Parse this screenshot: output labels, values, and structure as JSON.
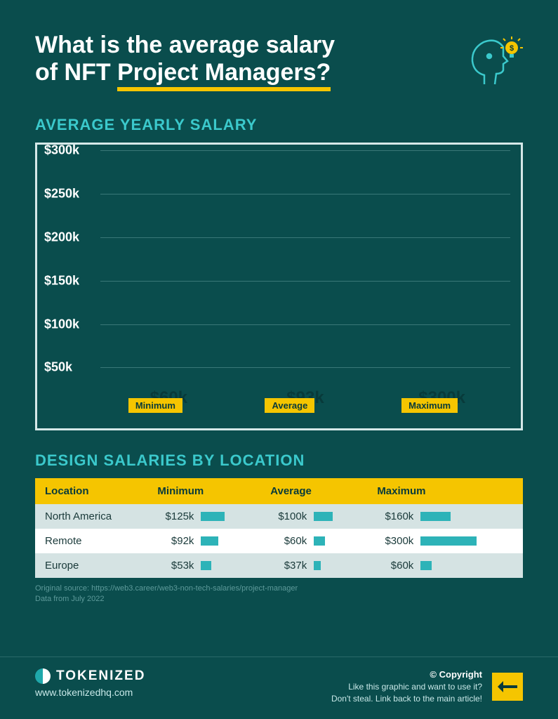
{
  "header": {
    "title_line1": "What is the average salary",
    "title_line2_prefix": "of NFT ",
    "title_line2_underline": "Project Managers?"
  },
  "chart": {
    "heading": "AVERAGE YEARLY SALARY",
    "type": "bar",
    "ylim": [
      0,
      300
    ],
    "ytick_step": 50,
    "y_labels": [
      "$300k",
      "$250k",
      "$200k",
      "$150k",
      "$100k",
      "$50k"
    ],
    "bars": [
      {
        "label": "Minimum",
        "value": 60,
        "display": "$60k"
      },
      {
        "label": "Average",
        "value": 93,
        "display": "$93k"
      },
      {
        "label": "Maximum",
        "value": 300,
        "display": "$300k"
      }
    ],
    "bar_color": "#9de3e6",
    "bar_label_bg": "#f5c500",
    "border_color": "#d5e8e8",
    "grid_color": "#3a7878",
    "background": "#0a4d4d",
    "value_color": "#083a3a"
  },
  "table": {
    "heading": "DESIGN SALARIES BY LOCATION",
    "columns": [
      "Location",
      "Minimum",
      "Average",
      "Maximum"
    ],
    "max_value": 300,
    "bar_color": "#2db3b8",
    "header_bg": "#f5c500",
    "row_alt_bg": "#d5e3e3",
    "row_bg": "#ffffff",
    "rows": [
      {
        "location": "North America",
        "min": {
          "v": 125,
          "d": "$125k"
        },
        "avg": {
          "v": 100,
          "d": "$100k"
        },
        "max": {
          "v": 160,
          "d": "$160k"
        }
      },
      {
        "location": "Remote",
        "min": {
          "v": 92,
          "d": "$92k"
        },
        "avg": {
          "v": 60,
          "d": "$60k"
        },
        "max": {
          "v": 300,
          "d": "$300k"
        }
      },
      {
        "location": "Europe",
        "min": {
          "v": 53,
          "d": "$53k"
        },
        "avg": {
          "v": 37,
          "d": "$37k"
        },
        "max": {
          "v": 60,
          "d": "$60k"
        }
      }
    ]
  },
  "source": {
    "line1": "Original source: https://web3.career/web3-non-tech-salaries/project-manager",
    "line2": "Data from July 2022"
  },
  "footer": {
    "brand": "TOKENIZED",
    "url": "www.tokenizedhq.com",
    "copyright": "© Copyright",
    "line1": "Like this graphic and want to use it?",
    "line2": "Don't steal. Link back to the main article!"
  },
  "colors": {
    "background": "#0a4d4d",
    "accent_yellow": "#f5c500",
    "accent_teal": "#3bc9cc"
  }
}
